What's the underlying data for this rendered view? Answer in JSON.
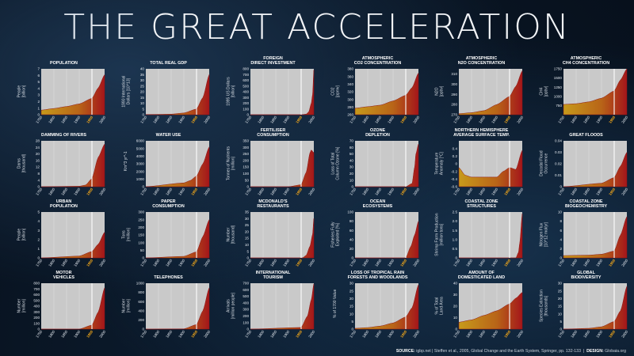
{
  "title": {
    "part1": "THE ",
    "part2": "GREAT ACCELERATION"
  },
  "source": {
    "label": "SOURCE:",
    "text": "igbp.net | Steffen et al., 2005, Global Change and the Earth System, Springer, pp. 132-133",
    "design_label": "DESIGN:",
    "design": "Globaia.org"
  },
  "colors": {
    "fill_start": "#c79a1b",
    "fill_end": "#a4161a",
    "plot_bg": "#c9c9c9",
    "highlight": "#f3a81a",
    "year_line": "#ffffff"
  },
  "x_ticks": [
    "1750",
    "1800",
    "1850",
    "1900",
    "1950",
    "2000"
  ],
  "highlight_year": "1950",
  "chart_data": [
    {
      "type": "area",
      "title": "POPULATION",
      "ylabel": "People\n[billion]",
      "ylim": [
        0,
        7
      ],
      "yticks": [
        "0",
        "1",
        "2",
        "3",
        "4",
        "5",
        "6",
        "7"
      ],
      "x": [
        1750,
        1800,
        1850,
        1900,
        1950,
        1975,
        2000
      ],
      "y": [
        0.7,
        0.95,
        1.25,
        1.65,
        2.5,
        4.1,
        6.1
      ]
    },
    {
      "type": "area",
      "title": "TOTAL REAL GDP",
      "ylabel": "1990 International\nDollars [10^13]",
      "ylim": [
        0,
        40
      ],
      "yticks": [
        "0",
        "5",
        "10",
        "15",
        "20",
        "25",
        "30",
        "35",
        "40"
      ],
      "x": [
        1750,
        1800,
        1850,
        1900,
        1950,
        1975,
        2000
      ],
      "y": [
        0.2,
        0.3,
        0.5,
        1.5,
        5,
        15,
        35
      ]
    },
    {
      "type": "area",
      "title": "FOREIGN\nDIRECT INVESTMENT",
      "ylabel": "1995 US Dollars\n[billion]",
      "ylim": [
        0,
        800
      ],
      "yticks": [
        "0",
        "100",
        "200",
        "300",
        "400",
        "500",
        "600",
        "700",
        "800"
      ],
      "x": [
        1750,
        1900,
        1950,
        1970,
        1980,
        1990,
        1995,
        2000
      ],
      "y": [
        0,
        0,
        0,
        10,
        50,
        200,
        350,
        780
      ]
    },
    {
      "type": "area",
      "title": "ATMOSPHERIC\nCO2 CONCENTRATION",
      "ylabel": "CO2\n[ppmv]",
      "ylim": [
        260,
        380
      ],
      "yticks": [
        "260",
        "280",
        "300",
        "320",
        "340",
        "360",
        "380"
      ],
      "x": [
        1750,
        1800,
        1850,
        1900,
        1950,
        1975,
        2000
      ],
      "y": [
        277,
        281,
        285,
        296,
        311,
        331,
        369
      ]
    },
    {
      "type": "area",
      "title": "ATMOSPHERIC\nN2O CONCENTRATION",
      "ylabel": "N2O\n[ppbv]",
      "ylim": [
        270,
        315
      ],
      "yticks": [
        "270",
        "280",
        "290",
        "300",
        "310"
      ],
      "x": [
        1750,
        1800,
        1850,
        1900,
        1950,
        1975,
        2000
      ],
      "y": [
        271,
        272,
        274,
        280,
        288,
        298,
        313
      ]
    },
    {
      "type": "area",
      "title": "ATMOSPHERIC\nCH4 CONCENTRATION",
      "ylabel": "CH4\n[ppbv]",
      "ylim": [
        500,
        1750
      ],
      "yticks": [
        "750",
        "1000",
        "1250",
        "1500",
        "1750"
      ],
      "x": [
        1750,
        1800,
        1850,
        1900,
        1950,
        1975,
        2000
      ],
      "y": [
        780,
        800,
        850,
        950,
        1150,
        1450,
        1750
      ]
    },
    {
      "type": "area",
      "title": "DAMMING OF RIVERS",
      "ylabel": "Dams\n[thousand]",
      "ylim": [
        0,
        28
      ],
      "yticks": [
        "0",
        "4",
        "8",
        "12",
        "16",
        "20",
        "24",
        "28"
      ],
      "x": [
        1750,
        1900,
        1925,
        1950,
        1975,
        2000
      ],
      "y": [
        0,
        0.3,
        1,
        5,
        18,
        26
      ]
    },
    {
      "type": "area",
      "title": "WATER USE",
      "ylabel": "Km^3 yr^-1",
      "ylim": [
        0,
        6000
      ],
      "yticks": [
        "0",
        "1000",
        "2000",
        "3000",
        "4000",
        "5000",
        "6000"
      ],
      "x": [
        1750,
        1900,
        1925,
        1950,
        1975,
        2000
      ],
      "y": [
        0,
        500,
        800,
        1400,
        3000,
        5200
      ]
    },
    {
      "type": "area",
      "title": "FERTILISER\nCONSUMPTION",
      "ylabel": "Tonnes of Nutrients\n[million]",
      "ylim": [
        0,
        350
      ],
      "yticks": [
        "0",
        "50",
        "100",
        "150",
        "200",
        "250",
        "300",
        "350"
      ],
      "x": [
        1750,
        1900,
        1950,
        1970,
        1985,
        1990,
        2000
      ],
      "y": [
        0,
        0,
        15,
        110,
        260,
        280,
        260
      ]
    },
    {
      "type": "area",
      "title": "OZONE\nDEPLETION",
      "ylabel": "Loss of Total\nColumn Ozone [%]",
      "ylim": [
        0,
        70
      ],
      "yticks": [
        "0",
        "10",
        "20",
        "30",
        "40",
        "50",
        "60",
        "70"
      ],
      "x": [
        1750,
        1950,
        1975,
        1985,
        1990,
        2000
      ],
      "y": [
        0,
        0,
        5,
        30,
        50,
        65
      ]
    },
    {
      "type": "area",
      "title": "NORTHERN HEMISPHERE\nAVERAGE SURFACE TEMP.",
      "ylabel": "Temperature\nAnomaly [°C]",
      "ylim": [
        -0.6,
        0.6
      ],
      "yticks": [
        "-0.6",
        "-0.4",
        "-0.2",
        "0",
        "0.2",
        "0.4"
      ],
      "x": [
        1750,
        1775,
        1800,
        1850,
        1900,
        1925,
        1950,
        1975,
        2000
      ],
      "y": [
        -0.1,
        -0.3,
        -0.35,
        -0.35,
        -0.35,
        -0.2,
        -0.1,
        -0.15,
        0.35
      ]
    },
    {
      "type": "area",
      "title": "GREAT FLOODS",
      "ylabel": "Decadal Flood\nOccurrence",
      "ylim": [
        0,
        0.04
      ],
      "yticks": [
        "0",
        "0.01",
        "0.02",
        "0.03",
        "0.04"
      ],
      "x": [
        1750,
        1900,
        1950,
        1975,
        2000
      ],
      "y": [
        0,
        0.003,
        0.008,
        0.018,
        0.03
      ]
    },
    {
      "type": "area",
      "title": "URBAN\nPOPULATION",
      "ylabel": "People\n[billion]",
      "ylim": [
        0,
        5
      ],
      "yticks": [
        "0",
        "1",
        "2",
        "3",
        "4",
        "5"
      ],
      "x": [
        1750,
        1900,
        1950,
        1975,
        2000
      ],
      "y": [
        0,
        0.2,
        0.7,
        1.5,
        2.8
      ]
    },
    {
      "type": "area",
      "title": "PAPER\nCONSUMPTION",
      "ylabel": "Tons\n[million]",
      "ylim": [
        0,
        300
      ],
      "yticks": [
        "0",
        "50",
        "100",
        "150",
        "200",
        "250",
        "300"
      ],
      "x": [
        1750,
        1900,
        1950,
        1975,
        2000
      ],
      "y": [
        0,
        10,
        40,
        140,
        250
      ]
    },
    {
      "type": "area",
      "title": "McDONALD'S\nRESTAURANTS",
      "ylabel": "Number\n[thousand]",
      "ylim": [
        0,
        35
      ],
      "yticks": [
        "0",
        "5",
        "10",
        "15",
        "20",
        "25",
        "30",
        "35"
      ],
      "x": [
        1750,
        1955,
        1970,
        1985,
        1995,
        2000
      ],
      "y": [
        0,
        0,
        2,
        9,
        18,
        30
      ]
    },
    {
      "type": "area",
      "title": "OCEAN\nECOSYSTEMS",
      "ylabel": "Fisheries Fully\nExploited [%]",
      "ylim": [
        0,
        100
      ],
      "yticks": [
        "0",
        "20",
        "40",
        "60",
        "80",
        "100"
      ],
      "x": [
        1750,
        1950,
        1970,
        1985,
        2000
      ],
      "y": [
        0,
        0,
        25,
        50,
        80
      ]
    },
    {
      "type": "area",
      "title": "COASTAL ZONE\nSTRUCTURES",
      "ylabel": "Shrimp Farm Production\n[million tons]",
      "ylim": [
        0,
        2.5
      ],
      "yticks": [
        "0",
        "0.5",
        "1.0",
        "1.5",
        "2.0",
        "2.5"
      ],
      "x": [
        1750,
        1975,
        1985,
        1990,
        2000
      ],
      "y": [
        0,
        0,
        0.3,
        0.8,
        2.4
      ]
    },
    {
      "type": "area",
      "title": "COASTAL ZONE\nBIOGEOCHEMISTRY",
      "ylabel": "Nitrogen Flux\n[10^12 mol/yr]",
      "ylim": [
        0,
        10
      ],
      "yticks": [
        "0",
        "2",
        "4",
        "6",
        "8",
        "10"
      ],
      "x": [
        1750,
        1850,
        1900,
        1950,
        1975,
        2000
      ],
      "y": [
        0.5,
        0.6,
        0.8,
        1.5,
        5,
        9
      ]
    },
    {
      "type": "area",
      "title": "MOTOR\nVEHICLES",
      "ylabel": "Number\n[million]",
      "ylim": [
        0,
        800
      ],
      "yticks": [
        "0",
        "100",
        "200",
        "300",
        "400",
        "500",
        "600",
        "700",
        "800"
      ],
      "x": [
        1750,
        1900,
        1950,
        1975,
        2000
      ],
      "y": [
        0,
        0,
        70,
        300,
        720
      ]
    },
    {
      "type": "area",
      "title": "TELEPHONES",
      "ylabel": "Number\n[million]",
      "ylim": [
        0,
        1000
      ],
      "yticks": [
        "0",
        "200",
        "400",
        "600",
        "800",
        "1000"
      ],
      "x": [
        1750,
        1900,
        1950,
        1975,
        2000
      ],
      "y": [
        0,
        5,
        100,
        400,
        900
      ]
    },
    {
      "type": "area",
      "title": "INTERNATIONAL\nTOURISM",
      "ylabel": "Arrivals\n[million people]",
      "ylim": [
        0,
        700
      ],
      "yticks": [
        "0",
        "100",
        "200",
        "300",
        "400",
        "500",
        "600",
        "700"
      ],
      "x": [
        1750,
        1950,
        1975,
        1990,
        2000
      ],
      "y": [
        0,
        25,
        200,
        450,
        690
      ]
    },
    {
      "type": "area",
      "title": "LOSS OF TROPICAL RAIN\nFORESTS AND WOODLANDS",
      "ylabel": "% of 1700 Value",
      "ylim": [
        0,
        30
      ],
      "yticks": [
        "0",
        "5",
        "10",
        "15",
        "20",
        "25",
        "30"
      ],
      "x": [
        1750,
        1800,
        1850,
        1900,
        1950,
        1975,
        2000
      ],
      "y": [
        0.5,
        1,
        2,
        4,
        8,
        14,
        29
      ]
    },
    {
      "type": "area",
      "title": "AMOUNT OF\nDOMESTICATED LAND",
      "ylabel": "% of Total\nLand Area",
      "ylim": [
        0,
        40
      ],
      "yticks": [
        "0",
        "10",
        "20",
        "30",
        "40"
      ],
      "x": [
        1750,
        1800,
        1850,
        1900,
        1950,
        1975,
        2000
      ],
      "y": [
        6,
        8,
        12,
        16,
        22,
        27,
        32
      ]
    },
    {
      "type": "area",
      "title": "GLOBAL\nBIODIVERSITY",
      "ylabel": "Species Extinction\n[thousands]",
      "ylim": [
        0,
        30
      ],
      "yticks": [
        "0",
        "5",
        "10",
        "15",
        "20",
        "25",
        "30"
      ],
      "x": [
        1750,
        1850,
        1900,
        1950,
        1975,
        2000
      ],
      "y": [
        0,
        0.5,
        1.5,
        5,
        12,
        28
      ]
    }
  ]
}
